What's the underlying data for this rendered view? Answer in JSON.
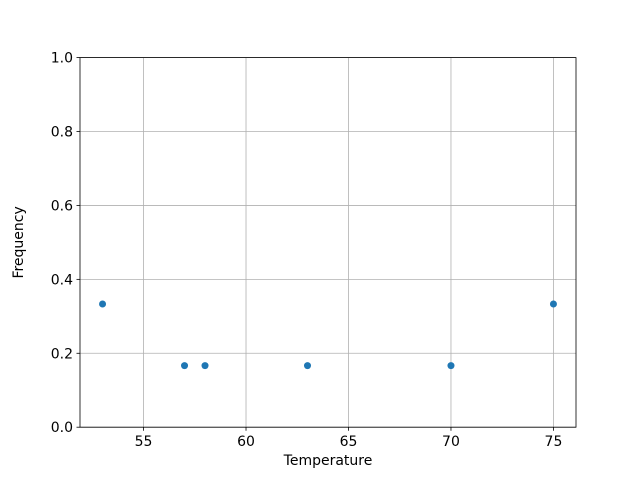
{
  "chart_data": {
    "type": "scatter",
    "title": "",
    "xlabel": "Temperature",
    "ylabel": "Frequency",
    "x": [
      53,
      57,
      58,
      63,
      70,
      75
    ],
    "y": [
      0.3333,
      0.1667,
      0.1667,
      0.1667,
      0.1667,
      0.3333
    ],
    "xlim": [
      51.9,
      76.1
    ],
    "ylim": [
      0.0,
      1.0
    ],
    "xticks": [
      55,
      60,
      65,
      70,
      75
    ],
    "xtick_labels": [
      "55",
      "60",
      "65",
      "70",
      "75"
    ],
    "yticks": [
      0.0,
      0.2,
      0.4,
      0.6,
      0.8,
      1.0
    ],
    "ytick_labels": [
      "0.0",
      "0.2",
      "0.4",
      "0.6",
      "0.8",
      "1.0"
    ],
    "grid": true,
    "legend_position": "none",
    "marker": "circle",
    "marker_color": "#1f77b4",
    "grid_color": "#b0b0b0",
    "spine_color": "#000000",
    "background_color": "#ffffff"
  }
}
